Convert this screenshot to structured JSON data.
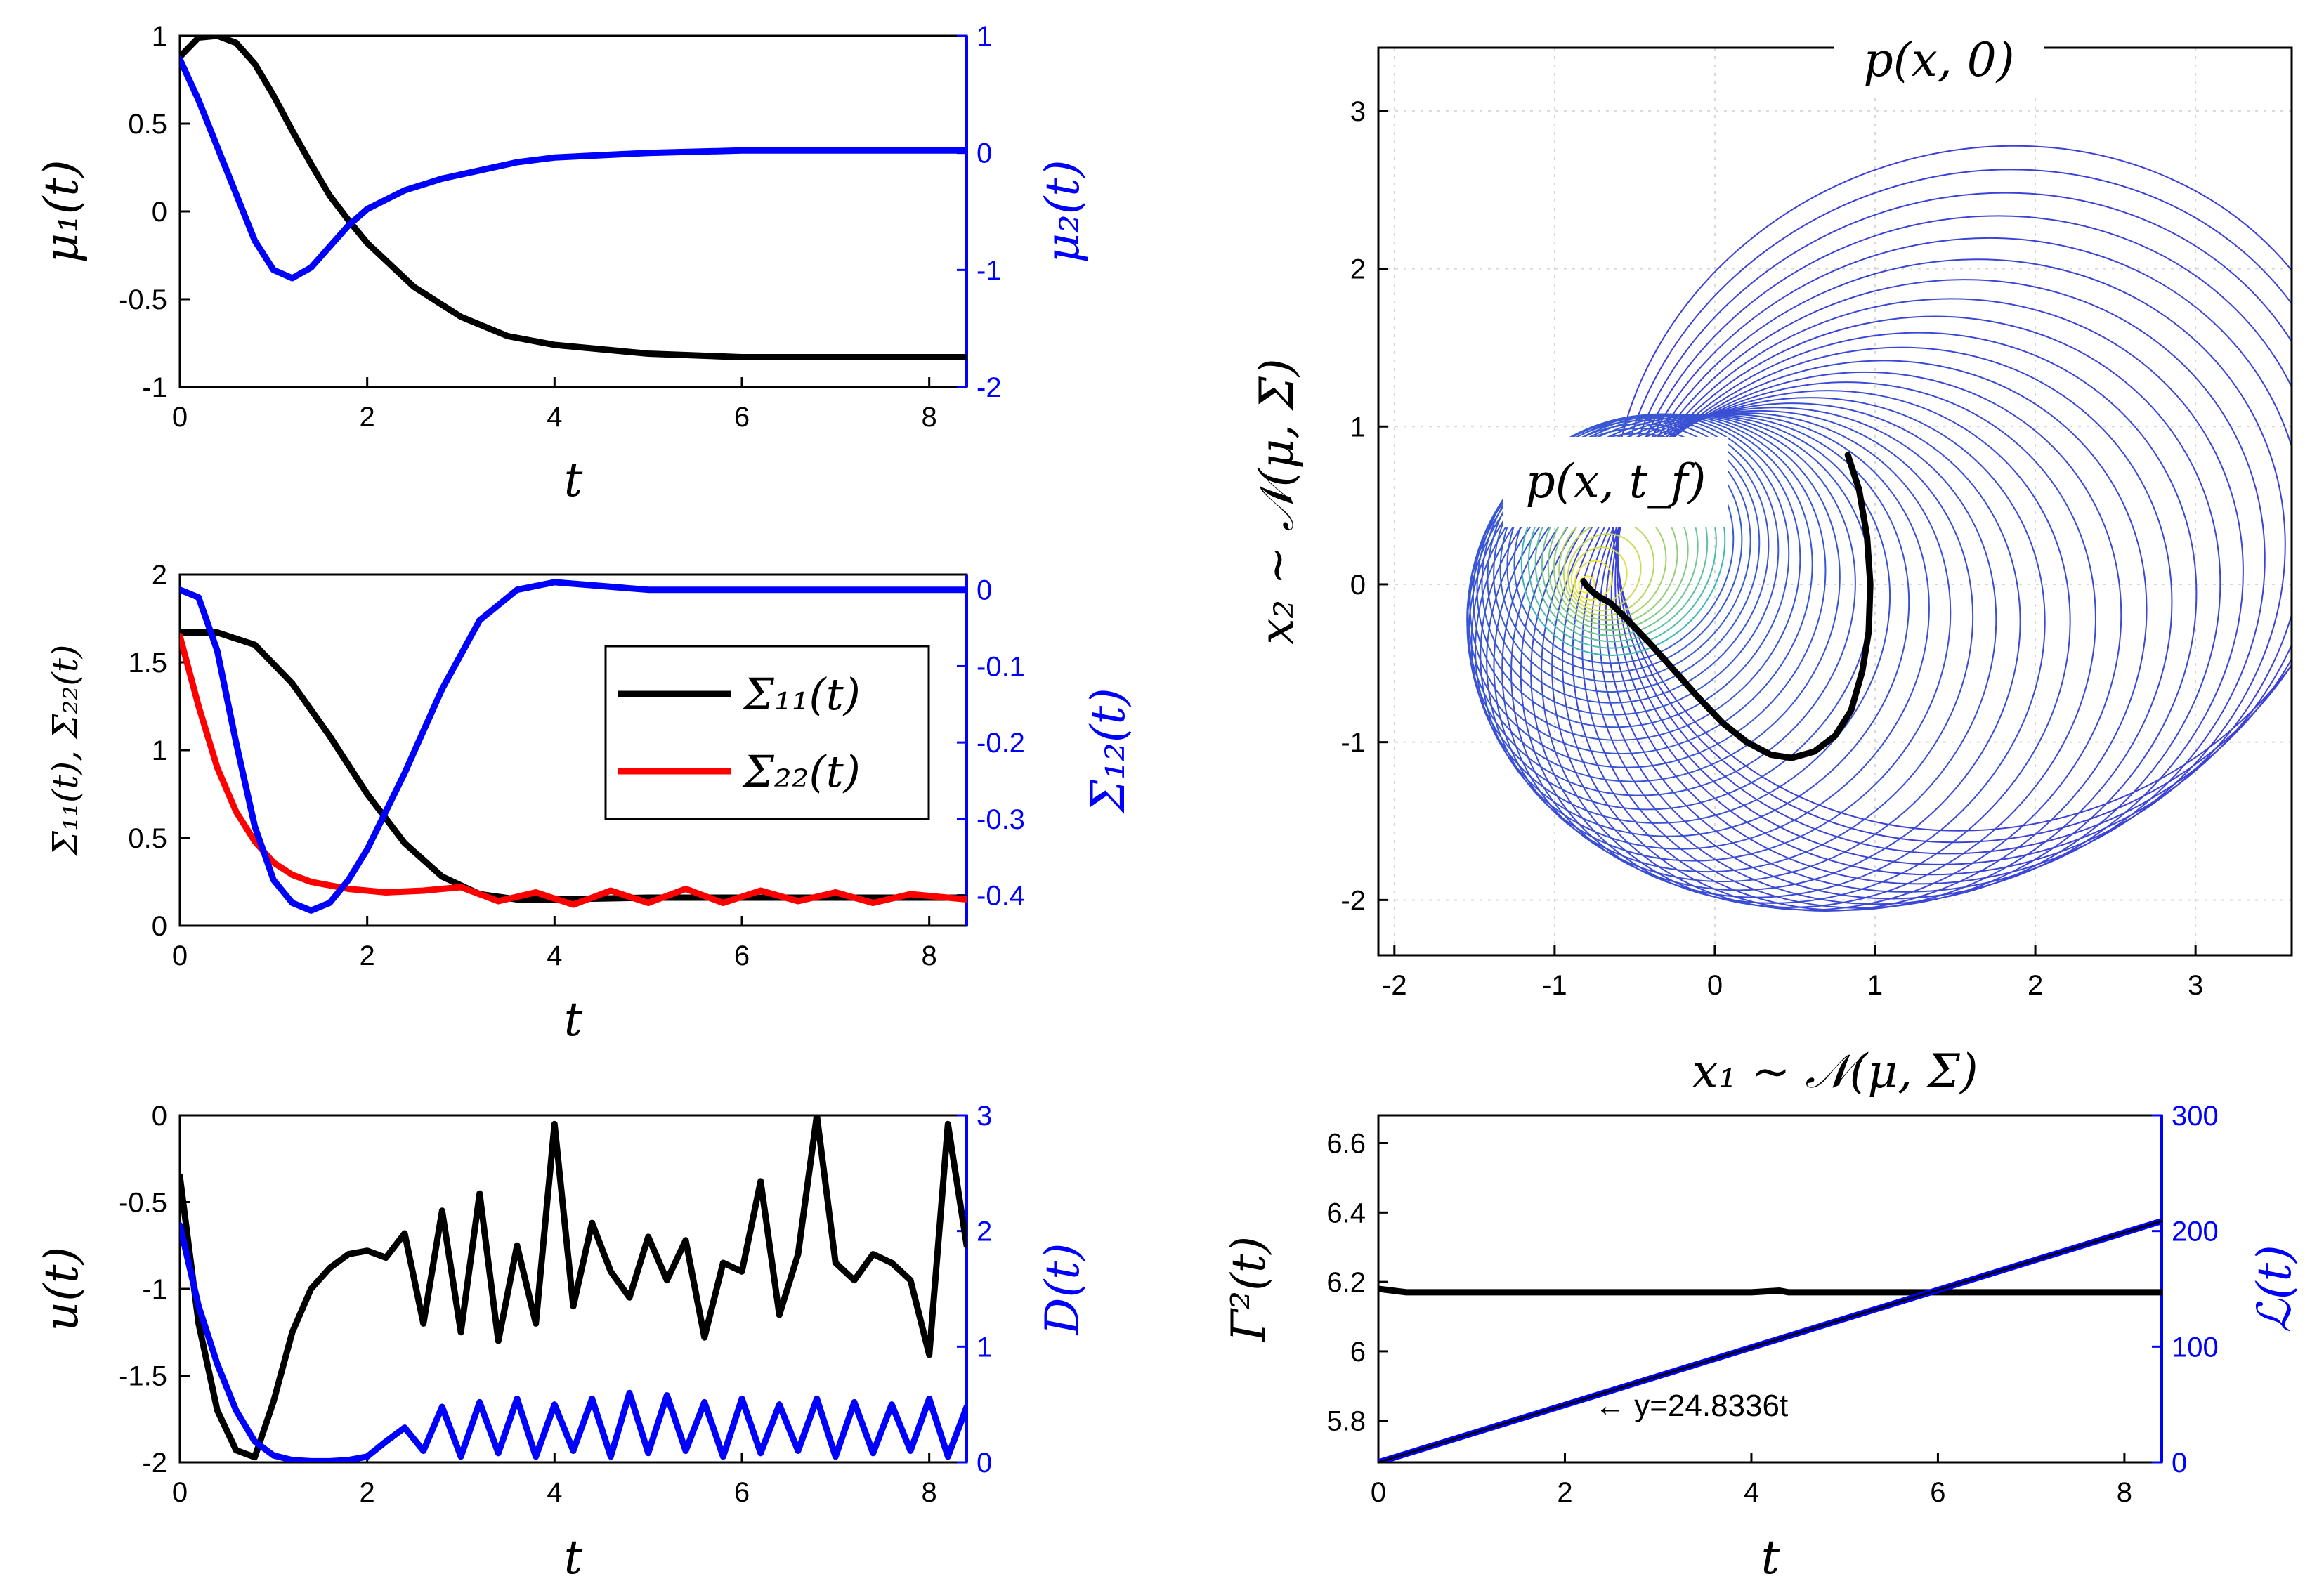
{
  "chart_data": [
    {
      "id": "mu",
      "type": "line",
      "xlabel": "t",
      "ylabel_left": "μ₁(t)",
      "ylabel_right": "μ₂(t)",
      "xlim": [
        0,
        8.4
      ],
      "ylim_left": [
        -1,
        1
      ],
      "ylim_right": [
        -2,
        1
      ],
      "x_ticks": [
        "0",
        "2",
        "4",
        "6",
        "8"
      ],
      "y_ticks_left": [
        "-1",
        "-0.5",
        "0",
        "0.5",
        "1"
      ],
      "y_ticks_right": [
        "-2",
        "-1",
        "0",
        "1"
      ],
      "series": [
        {
          "axis": "left",
          "color": "#000000",
          "x": [
            0,
            0.2,
            0.4,
            0.6,
            0.8,
            1.0,
            1.2,
            1.4,
            1.6,
            1.8,
            2.0,
            2.5,
            3.0,
            3.5,
            4.0,
            5.0,
            6.0,
            7.0,
            8.4
          ],
          "y": [
            0.88,
            0.99,
            1.0,
            0.96,
            0.84,
            0.66,
            0.46,
            0.27,
            0.09,
            -0.05,
            -0.18,
            -0.43,
            -0.6,
            -0.71,
            -0.76,
            -0.81,
            -0.83,
            -0.83,
            -0.83
          ]
        },
        {
          "axis": "right",
          "color": "#0000ff",
          "x": [
            0,
            0.2,
            0.4,
            0.6,
            0.8,
            1.0,
            1.2,
            1.4,
            1.6,
            1.8,
            2.0,
            2.4,
            2.8,
            3.2,
            3.6,
            4.0,
            5.0,
            6.0,
            7.0,
            8.4
          ],
          "y": [
            0.8,
            0.45,
            0.05,
            -0.35,
            -0.75,
            -1.0,
            -1.07,
            -0.98,
            -0.8,
            -0.62,
            -0.48,
            -0.32,
            -0.22,
            -0.15,
            -0.08,
            -0.04,
            0.0,
            0.02,
            0.02,
            0.02
          ]
        }
      ]
    },
    {
      "id": "sigma",
      "type": "line",
      "xlabel": "t",
      "ylabel_left": "Σ₁₁(t), Σ₂₂(t)",
      "ylabel_right": "Σ₁₂(t)",
      "xlim": [
        0,
        8.4
      ],
      "ylim_left": [
        0,
        2
      ],
      "ylim_right": [
        -0.44,
        0.02
      ],
      "x_ticks": [
        "0",
        "2",
        "4",
        "6",
        "8"
      ],
      "y_ticks_left": [
        "0",
        "0.5",
        "1",
        "1.5",
        "2"
      ],
      "y_ticks_right": [
        "-0.4",
        "-0.3",
        "-0.2",
        "-0.1",
        "0"
      ],
      "legend": {
        "position": "right",
        "entries": [
          "Σ₁₁(t)",
          "Σ₂₂(t)"
        ]
      },
      "series": [
        {
          "name": "Σ₁₁(t)",
          "axis": "left",
          "color": "#000000",
          "x": [
            0,
            0.4,
            0.8,
            1.2,
            1.6,
            2.0,
            2.4,
            2.8,
            3.2,
            3.6,
            4.0,
            5.0,
            6.0,
            7.0,
            8.4
          ],
          "y": [
            1.67,
            1.67,
            1.6,
            1.38,
            1.08,
            0.75,
            0.47,
            0.28,
            0.18,
            0.15,
            0.15,
            0.16,
            0.16,
            0.16,
            0.16
          ]
        },
        {
          "name": "Σ₂₂(t)",
          "axis": "left",
          "color": "#ff0000",
          "x": [
            0,
            0.2,
            0.4,
            0.6,
            0.8,
            1.0,
            1.2,
            1.4,
            1.8,
            2.2,
            2.6,
            3.0,
            3.4,
            3.8,
            4.2,
            4.6,
            5.0,
            5.4,
            5.8,
            6.2,
            6.6,
            7.0,
            7.4,
            7.8,
            8.4
          ],
          "y": [
            1.65,
            1.25,
            0.9,
            0.65,
            0.48,
            0.36,
            0.29,
            0.25,
            0.21,
            0.19,
            0.2,
            0.22,
            0.14,
            0.19,
            0.12,
            0.2,
            0.13,
            0.21,
            0.13,
            0.2,
            0.14,
            0.19,
            0.13,
            0.18,
            0.15
          ]
        },
        {
          "name": "",
          "axis": "right",
          "color": "#0000ff",
          "x": [
            0,
            0.2,
            0.4,
            0.6,
            0.8,
            1.0,
            1.2,
            1.4,
            1.6,
            1.8,
            2.0,
            2.4,
            2.8,
            3.2,
            3.6,
            4.0,
            5.0,
            6.0,
            7.0,
            8.4
          ],
          "y": [
            0.0,
            -0.01,
            -0.08,
            -0.2,
            -0.31,
            -0.38,
            -0.41,
            -0.42,
            -0.41,
            -0.38,
            -0.34,
            -0.24,
            -0.13,
            -0.04,
            0.0,
            0.01,
            0.0,
            0.0,
            0.0,
            0.0
          ]
        }
      ]
    },
    {
      "id": "control",
      "type": "line",
      "xlabel": "t",
      "ylabel_left": "u(t)",
      "ylabel_right": "D(t)",
      "xlim": [
        0,
        8.4
      ],
      "ylim_left": [
        -2,
        0
      ],
      "ylim_right": [
        0,
        3
      ],
      "x_ticks": [
        "0",
        "2",
        "4",
        "6",
        "8"
      ],
      "y_ticks_left": [
        "-2",
        "-1.5",
        "-1",
        "-0.5",
        "0"
      ],
      "y_ticks_right": [
        "0",
        "1",
        "2",
        "3"
      ],
      "series": [
        {
          "axis": "left",
          "color": "#000000",
          "x": [
            0,
            0.2,
            0.4,
            0.6,
            0.8,
            1.0,
            1.2,
            1.4,
            1.6,
            1.8,
            2.0,
            2.2,
            2.4,
            2.6,
            2.8,
            3.0,
            3.2,
            3.4,
            3.6,
            3.8,
            4.0,
            4.2,
            4.4,
            4.6,
            4.8,
            5.0,
            5.2,
            5.4,
            5.6,
            5.8,
            6.0,
            6.2,
            6.4,
            6.6,
            6.8,
            7.0,
            7.2,
            7.4,
            7.6,
            7.8,
            8.0,
            8.2,
            8.4
          ],
          "y": [
            -0.35,
            -1.2,
            -1.7,
            -1.93,
            -1.97,
            -1.65,
            -1.25,
            -1.0,
            -0.88,
            -0.8,
            -0.78,
            -0.82,
            -0.68,
            -1.2,
            -0.55,
            -1.25,
            -0.45,
            -1.3,
            -0.75,
            -1.2,
            -0.05,
            -1.1,
            -0.62,
            -0.9,
            -1.05,
            -0.7,
            -0.95,
            -0.72,
            -1.28,
            -0.85,
            -0.9,
            -0.38,
            -1.15,
            -0.8,
            0.0,
            -0.85,
            -0.95,
            -0.8,
            -0.85,
            -0.95,
            -1.38,
            -0.05,
            -0.75
          ]
        },
        {
          "axis": "right",
          "color": "#0000ff",
          "x": [
            0,
            0.2,
            0.4,
            0.6,
            0.8,
            1.0,
            1.2,
            1.4,
            1.6,
            1.8,
            2.0,
            2.2,
            2.4,
            2.6,
            2.8,
            3.0,
            3.2,
            3.4,
            3.6,
            3.8,
            4.0,
            4.2,
            4.4,
            4.6,
            4.8,
            5.0,
            5.2,
            5.4,
            5.6,
            5.8,
            6.0,
            6.2,
            6.4,
            6.6,
            6.8,
            7.0,
            7.2,
            7.4,
            7.6,
            7.8,
            8.0,
            8.2,
            8.4
          ],
          "y": [
            2.05,
            1.35,
            0.85,
            0.45,
            0.18,
            0.06,
            0.02,
            0.01,
            0.01,
            0.02,
            0.05,
            0.18,
            0.3,
            0.1,
            0.48,
            0.05,
            0.52,
            0.08,
            0.55,
            0.05,
            0.5,
            0.1,
            0.55,
            0.05,
            0.6,
            0.08,
            0.58,
            0.1,
            0.52,
            0.05,
            0.55,
            0.08,
            0.5,
            0.1,
            0.55,
            0.05,
            0.52,
            0.08,
            0.5,
            0.1,
            0.55,
            0.05,
            0.48
          ]
        }
      ]
    },
    {
      "id": "phase",
      "type": "line",
      "xlabel": "x₁ ∼ 𝒩(μ, Σ)",
      "ylabel_left": "x₂ ∼ 𝒩(μ, Σ)",
      "xlim": [
        -2.1,
        3.6
      ],
      "ylim": [
        -2.35,
        3.4
      ],
      "grid": true,
      "x_ticks": [
        "-2",
        "-1",
        "0",
        "1",
        "2",
        "3"
      ],
      "y_ticks_left": [
        "-2",
        "-1",
        "0",
        "1",
        "2",
        "3"
      ],
      "annotations": [
        "p(x, 0)",
        "p(x, t_f)"
      ],
      "mean_trajectory": {
        "color": "#000000",
        "x": [
          0.83,
          0.9,
          0.95,
          0.97,
          0.96,
          0.92,
          0.85,
          0.75,
          0.62,
          0.48,
          0.35,
          0.2,
          0.05,
          -0.1,
          -0.25,
          -0.4,
          -0.55,
          -0.65,
          -0.72,
          -0.76,
          -0.8,
          -0.82
        ],
        "y": [
          0.82,
          0.6,
          0.3,
          0.0,
          -0.3,
          -0.55,
          -0.8,
          -0.96,
          -1.06,
          -1.1,
          -1.08,
          -1.0,
          -0.88,
          -0.72,
          -0.55,
          -0.38,
          -0.22,
          -0.12,
          -0.08,
          -0.05,
          -0.01,
          0.02
        ]
      },
      "covariance_ellipses": {
        "count": 48,
        "color_start": "#3c3fd8",
        "color_end": "#ffea2b"
      }
    },
    {
      "id": "cost",
      "type": "line",
      "xlabel": "t",
      "ylabel_left": "Γ²(t)",
      "ylabel_right": "ℒ(t)",
      "xlim": [
        0,
        8.4
      ],
      "ylim_left": [
        5.68,
        6.68
      ],
      "ylim_right": [
        0,
        300
      ],
      "x_ticks": [
        "0",
        "2",
        "4",
        "6",
        "8"
      ],
      "y_ticks_left": [
        "5.8",
        "6",
        "6.2",
        "6.4",
        "6.6"
      ],
      "y_ticks_right": [
        "0",
        "100",
        "200",
        "300"
      ],
      "annotation": "← y=24.8336t",
      "series": [
        {
          "axis": "left",
          "color": "#000000",
          "x": [
            0,
            0.3,
            1,
            2,
            3,
            4,
            4.3,
            4.4,
            4.5,
            5,
            6,
            7,
            8.4
          ],
          "y": [
            6.18,
            6.17,
            6.17,
            6.17,
            6.17,
            6.17,
            6.175,
            6.17,
            6.17,
            6.17,
            6.17,
            6.17,
            6.17
          ]
        },
        {
          "axis": "right",
          "color": "#0000ff",
          "x": [
            0,
            8.4
          ],
          "y": [
            0,
            208.6
          ]
        },
        {
          "axis": "right",
          "color": "#000000",
          "x": [
            0,
            8.4
          ],
          "y": [
            0,
            208.6
          ]
        }
      ]
    }
  ]
}
